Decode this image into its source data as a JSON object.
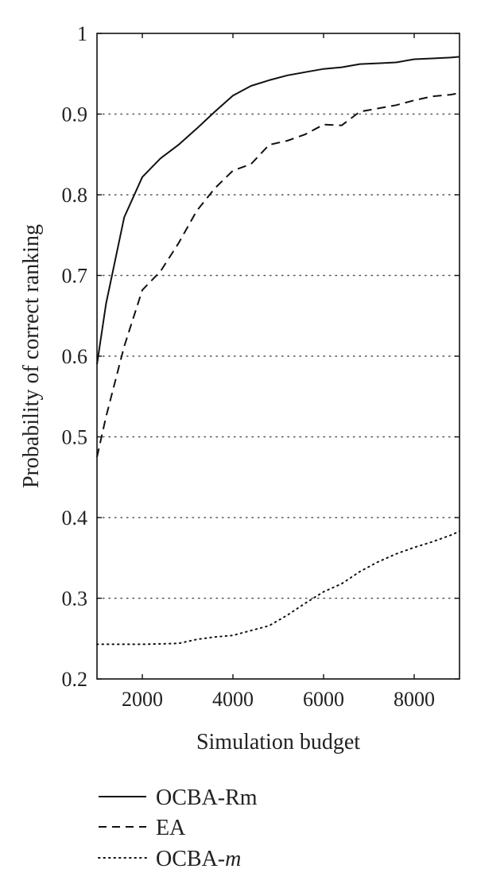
{
  "chart_data": {
    "type": "line",
    "title": "",
    "xlabel": "Simulation budget",
    "ylabel": "Probability of correct ranking",
    "xlim": [
      1000,
      9000
    ],
    "ylim": [
      0.2,
      1.0
    ],
    "xticks": [
      2000,
      4000,
      6000,
      8000
    ],
    "xtick_labels": [
      "2000",
      "4000",
      "6000",
      "8000"
    ],
    "yticks": [
      0.2,
      0.3,
      0.4,
      0.5,
      0.6,
      0.7,
      0.8,
      0.9,
      1.0
    ],
    "ytick_labels": [
      "0.2",
      "0.3",
      "0.4",
      "0.5",
      "0.6",
      "0.7",
      "0.8",
      "0.9",
      "1"
    ],
    "grid": "horizontal-dotted",
    "legend_position": "below",
    "series": [
      {
        "name": "OCBA-Rm",
        "style": "solid",
        "color": "#111111",
        "x": [
          1000,
          1200,
          1600,
          2000,
          2400,
          2800,
          3200,
          3600,
          4000,
          4400,
          4800,
          5200,
          5600,
          6000,
          6400,
          6800,
          7200,
          7600,
          8000,
          8400,
          8800,
          9000
        ],
        "y": [
          0.59,
          0.665,
          0.772,
          0.822,
          0.845,
          0.862,
          0.882,
          0.903,
          0.923,
          0.935,
          0.942,
          0.948,
          0.952,
          0.956,
          0.958,
          0.962,
          0.963,
          0.964,
          0.968,
          0.969,
          0.97,
          0.971
        ]
      },
      {
        "name": "EA",
        "style": "dashed",
        "color": "#111111",
        "x": [
          1000,
          1200,
          1600,
          2000,
          2400,
          2800,
          3200,
          3600,
          4000,
          4400,
          4800,
          5200,
          5600,
          6000,
          6400,
          6800,
          7200,
          7600,
          8000,
          8400,
          8800,
          9000
        ],
        "y": [
          0.475,
          0.525,
          0.612,
          0.682,
          0.705,
          0.74,
          0.78,
          0.808,
          0.83,
          0.838,
          0.862,
          0.867,
          0.875,
          0.887,
          0.886,
          0.903,
          0.907,
          0.911,
          0.917,
          0.922,
          0.924,
          0.926
        ]
      },
      {
        "name": "OCBA-m",
        "style": "dotted",
        "color": "#111111",
        "x": [
          1000,
          1400,
          2000,
          2800,
          3200,
          3600,
          4000,
          4400,
          4800,
          5200,
          5600,
          6000,
          6400,
          6800,
          7200,
          7600,
          8000,
          8400,
          8800,
          9000
        ],
        "y": [
          0.243,
          0.243,
          0.243,
          0.244,
          0.249,
          0.252,
          0.254,
          0.26,
          0.266,
          0.279,
          0.294,
          0.308,
          0.318,
          0.333,
          0.345,
          0.355,
          0.363,
          0.37,
          0.378,
          0.383
        ]
      }
    ]
  },
  "legend": {
    "items": [
      {
        "label": "OCBA-Rm",
        "style": "solid"
      },
      {
        "label": "EA",
        "style": "dashed"
      },
      {
        "label_main": "OCBA-",
        "label_italic": "m",
        "style": "dotted"
      }
    ]
  }
}
